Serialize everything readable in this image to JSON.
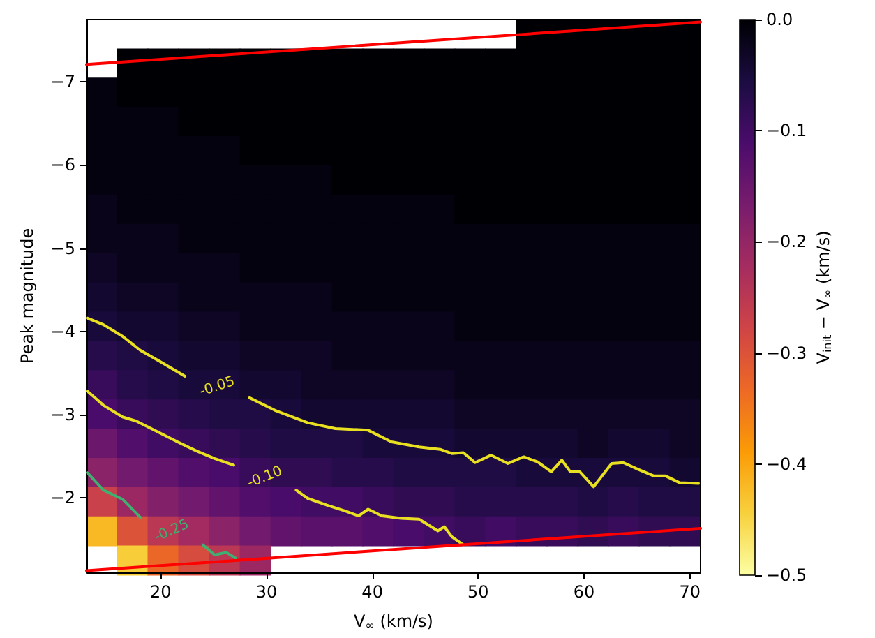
{
  "chart_data": [
    {
      "type": "heatmap",
      "clabel": "V$_{init}$ − V$_{∞}$ (km/s)",
      "categories": [
        null,
        null,
        null,
        null,
        null,
        null,
        null,
        null,
        null,
        null,
        null,
        null,
        null,
        null,
        null,
        null,
        null,
        null,
        null,
        null
      ],
      "y_categories": [
        null,
        null,
        null,
        null,
        null,
        null,
        null,
        null,
        null,
        null,
        null,
        null,
        null,
        null,
        null,
        null,
        null,
        null,
        null
      ],
      "clim": [
        -0.5,
        0
      ],
      "cticks": [
        {
          "value": 0,
          "label": "0.0"
        },
        {
          "value": -0.1,
          "label": "−0.1"
        },
        {
          "value": -0.2,
          "label": "−0.2"
        },
        {
          "value": -0.3,
          "label": "−0.3"
        },
        {
          "value": -0.4,
          "label": "−0.4"
        },
        {
          "value": -0.5,
          "label": "−0.5"
        }
      ],
      "cells": [
        [
          null,
          null,
          null,
          null,
          null,
          null,
          null,
          null,
          null,
          null,
          null,
          null,
          null,
          null,
          0,
          0,
          0,
          0,
          0,
          0
        ],
        [
          null,
          0,
          0,
          0,
          0,
          0,
          0,
          0,
          0,
          0,
          0,
          0,
          0,
          0,
          0,
          0,
          0,
          0,
          0,
          0
        ],
        [
          -0.01,
          0,
          0,
          0,
          0,
          0,
          0,
          0,
          0,
          0,
          0,
          0,
          0,
          0,
          0,
          0,
          0,
          0,
          0,
          0
        ],
        [
          -0.01,
          -0.01,
          -0.01,
          0,
          0,
          0,
          0,
          0,
          0,
          0,
          0,
          0,
          0,
          0,
          0,
          0,
          0,
          0,
          0,
          0
        ],
        [
          -0.01,
          -0.01,
          -0.01,
          -0.01,
          -0.01,
          0,
          0,
          0,
          0,
          0,
          0,
          0,
          0,
          0,
          0,
          0,
          0,
          0,
          0,
          0
        ],
        [
          -0.01,
          -0.01,
          -0.01,
          -0.01,
          -0.01,
          -0.01,
          -0.01,
          -0.01,
          0,
          0,
          0,
          0,
          0,
          0,
          0,
          0,
          0,
          0,
          0,
          0
        ],
        [
          -0.02,
          -0.01,
          -0.01,
          -0.01,
          -0.01,
          -0.01,
          -0.01,
          -0.01,
          -0.01,
          -0.01,
          -0.01,
          -0.01,
          0,
          0,
          0,
          0,
          0,
          0,
          0,
          0
        ],
        [
          -0.02,
          -0.02,
          -0.02,
          -0.01,
          -0.01,
          -0.01,
          -0.01,
          -0.01,
          -0.01,
          -0.01,
          -0.01,
          -0.01,
          -0.01,
          -0.01,
          -0.01,
          -0.01,
          -0.01,
          -0.01,
          -0.01,
          -0.01
        ],
        [
          -0.03,
          -0.02,
          -0.02,
          -0.02,
          -0.02,
          -0.01,
          -0.01,
          -0.01,
          -0.01,
          -0.01,
          -0.01,
          -0.01,
          -0.01,
          -0.01,
          -0.01,
          -0.01,
          -0.01,
          -0.01,
          -0.01,
          -0.01
        ],
        [
          -0.04,
          -0.03,
          -0.03,
          -0.02,
          -0.02,
          -0.02,
          -0.02,
          -0.02,
          -0.01,
          -0.01,
          -0.01,
          -0.01,
          -0.01,
          -0.01,
          -0.01,
          -0.01,
          -0.01,
          -0.01,
          -0.01,
          -0.01
        ],
        [
          -0.05,
          -0.04,
          -0.04,
          -0.03,
          -0.03,
          -0.02,
          -0.02,
          -0.02,
          -0.02,
          -0.02,
          -0.02,
          -0.02,
          -0.01,
          -0.01,
          -0.01,
          -0.01,
          -0.01,
          -0.01,
          -0.01,
          -0.01
        ],
        [
          -0.07,
          -0.06,
          -0.05,
          -0.04,
          -0.04,
          -0.03,
          -0.03,
          -0.03,
          -0.02,
          -0.02,
          -0.02,
          -0.02,
          -0.02,
          -0.02,
          -0.02,
          -0.02,
          -0.02,
          -0.02,
          -0.02,
          -0.02
        ],
        [
          -0.09,
          -0.07,
          -0.06,
          -0.05,
          -0.05,
          -0.04,
          -0.04,
          -0.03,
          -0.03,
          -0.03,
          -0.03,
          -0.03,
          -0.02,
          -0.02,
          -0.02,
          -0.02,
          -0.02,
          -0.02,
          -0.02,
          -0.02
        ],
        [
          -0.11,
          -0.09,
          -0.08,
          -0.07,
          -0.06,
          -0.06,
          -0.05,
          -0.04,
          -0.04,
          -0.04,
          -0.04,
          -0.04,
          -0.03,
          -0.03,
          -0.03,
          -0.03,
          -0.03,
          -0.03,
          -0.03,
          -0.03
        ],
        [
          -0.15,
          -0.12,
          -0.1,
          -0.09,
          -0.08,
          -0.07,
          -0.06,
          -0.06,
          -0.06,
          -0.05,
          -0.05,
          -0.05,
          -0.04,
          -0.04,
          -0.04,
          -0.04,
          -0.03,
          -0.04,
          -0.04,
          -0.03
        ],
        [
          -0.19,
          -0.16,
          -0.14,
          -0.12,
          -0.11,
          -0.09,
          -0.08,
          -0.08,
          -0.07,
          -0.07,
          -0.06,
          -0.06,
          -0.06,
          -0.06,
          -0.05,
          -0.05,
          -0.05,
          -0.05,
          -0.05,
          -0.04
        ],
        [
          -0.27,
          -0.21,
          -0.18,
          -0.16,
          -0.14,
          -0.12,
          -0.11,
          -0.1,
          -0.1,
          -0.09,
          -0.08,
          -0.08,
          -0.07,
          -0.07,
          -0.07,
          -0.07,
          -0.06,
          -0.07,
          -0.06,
          -0.06
        ],
        [
          -0.42,
          -0.3,
          -0.25,
          -0.22,
          -0.19,
          -0.16,
          -0.14,
          -0.13,
          -0.13,
          -0.12,
          -0.11,
          -0.1,
          -0.09,
          -0.1,
          -0.09,
          -0.09,
          -0.08,
          -0.09,
          -0.08,
          -0.08
        ],
        [
          null,
          -0.44,
          -0.33,
          -0.29,
          -0.25,
          -0.21,
          null,
          null,
          null,
          null,
          null,
          null,
          null,
          null,
          null,
          null,
          null,
          null,
          null,
          null
        ]
      ]
    },
    {
      "type": "line",
      "xlabel": "V$_{∞}$ (km/s)",
      "ylabel": "Peak magnitude",
      "xlim": [
        13,
        71
      ],
      "xticks": [
        20,
        30,
        40,
        50,
        60,
        70
      ],
      "ylim": [
        -1.1,
        -7.75
      ],
      "yticks": [
        {
          "value": -7,
          "label": "−7"
        },
        {
          "value": -6,
          "label": "−6"
        },
        {
          "value": -5,
          "label": "−5"
        },
        {
          "value": -4,
          "label": "−4"
        },
        {
          "value": -3,
          "label": "−3"
        },
        {
          "value": -2,
          "label": "−2"
        }
      ],
      "marker": "none",
      "line_style": "solid",
      "series": [
        {
          "name": "-0.05",
          "color": "#e8e020",
          "x": [
            13.07,
            14.6,
            16.4,
            18.1,
            19.9,
            22.3,
            25,
            28.4,
            30.8,
            33.9,
            36.5,
            39.6,
            41.8,
            44.4,
            46.4,
            47.5,
            48.6,
            49.7,
            51.2,
            52.8,
            54.3,
            55.6,
            56.9,
            57.9,
            58.7,
            59.6,
            60.9,
            62.6,
            63.7,
            65.1,
            66.6,
            67.7,
            69,
            70.8
          ],
          "values": [
            -4.16,
            -4.08,
            -3.94,
            -3.77,
            -3.64,
            -3.46,
            null,
            -3.2,
            -3.05,
            -2.9,
            -2.83,
            -2.81,
            -2.67,
            -2.61,
            -2.58,
            -2.53,
            -2.54,
            -2.42,
            -2.51,
            -2.41,
            -2.49,
            -2.43,
            -2.31,
            -2.45,
            -2.31,
            -2.31,
            -2.13,
            -2.41,
            -2.42,
            -2.34,
            -2.26,
            -2.26,
            -2.18,
            -2.17
          ]
        },
        {
          "name": "-0.10",
          "color": "#e8e020",
          "x": [
            13.07,
            14.6,
            16.4,
            17.7,
            19.9,
            21.6,
            23.4,
            25.1,
            26.9,
            30,
            32.8,
            33.9,
            35.7,
            37.4,
            38.7,
            39.6,
            40.9,
            42.7,
            44.4,
            46.2,
            46.8,
            47.5,
            48.6
          ],
          "values": [
            -3.28,
            -3.11,
            -2.97,
            -2.92,
            -2.78,
            -2.67,
            -2.56,
            -2.47,
            -2.39,
            null,
            -2.09,
            -1.99,
            -1.91,
            -1.84,
            -1.78,
            -1.86,
            -1.78,
            -1.75,
            -1.74,
            -1.6,
            -1.65,
            -1.53,
            -1.43
          ]
        },
        {
          "name": "-0.25",
          "color": "#3fb070",
          "x": [
            13.07,
            14.6,
            16.4,
            18.1,
            21,
            24,
            25.1,
            26.2,
            27.1
          ],
          "values": [
            -2.3,
            -2.09,
            -1.98,
            -1.76,
            null,
            -1.43,
            -1.31,
            -1.34,
            -1.27
          ]
        },
        {
          "color": "#ff0000",
          "x": [
            13,
            71
          ],
          "values": [
            -7.21,
            -7.72
          ]
        },
        {
          "color": "#ff0000",
          "x": [
            13,
            71
          ],
          "values": [
            -1.12,
            -1.63
          ]
        }
      ]
    }
  ]
}
